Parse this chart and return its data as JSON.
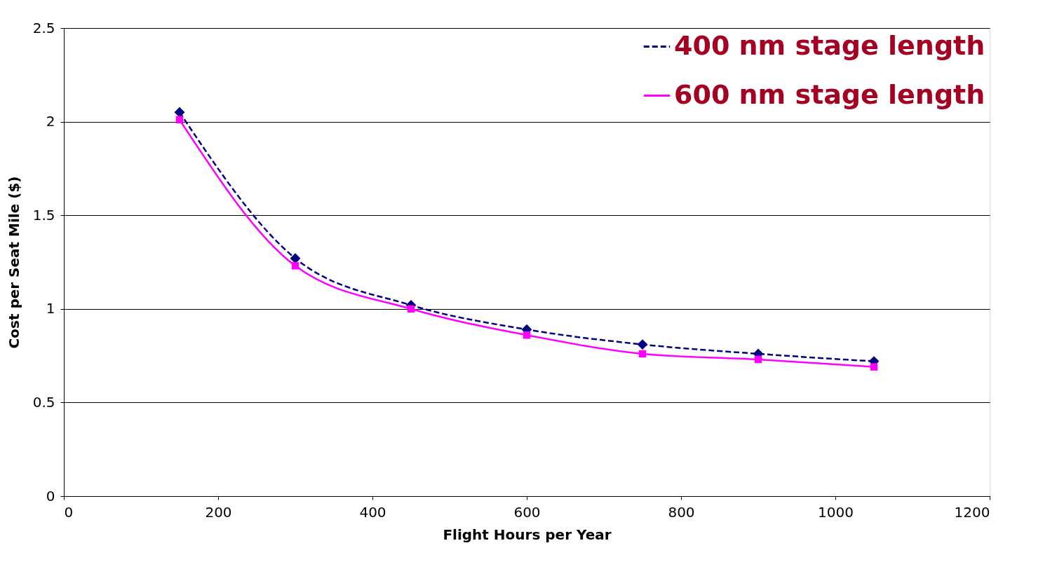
{
  "chart_data": {
    "type": "line",
    "xlabel": "Flight Hours per Year",
    "ylabel": "Cost per Seat Mile ($)",
    "x": [
      150,
      300,
      450,
      600,
      750,
      900,
      1050
    ],
    "series": [
      {
        "name": "400 nm stage length",
        "color": "#000080",
        "values": [
          2.05,
          1.27,
          1.02,
          0.89,
          0.81,
          0.76,
          0.72
        ],
        "marker": "diamond",
        "line_style": "dashed"
      },
      {
        "name": "600 nm stage length",
        "color": "#ff00ff",
        "values": [
          2.01,
          1.23,
          1.0,
          0.86,
          0.76,
          0.73,
          0.69
        ],
        "marker": "square",
        "line_style": "solid"
      }
    ],
    "xlim": [
      0,
      1200
    ],
    "xticks": [
      0,
      200,
      400,
      600,
      800,
      1000,
      1200
    ],
    "ylim": [
      0,
      2.5
    ],
    "yticks": [
      0,
      0.5,
      1,
      1.5,
      2,
      2.5
    ],
    "grid": "y",
    "legend": "top right"
  }
}
